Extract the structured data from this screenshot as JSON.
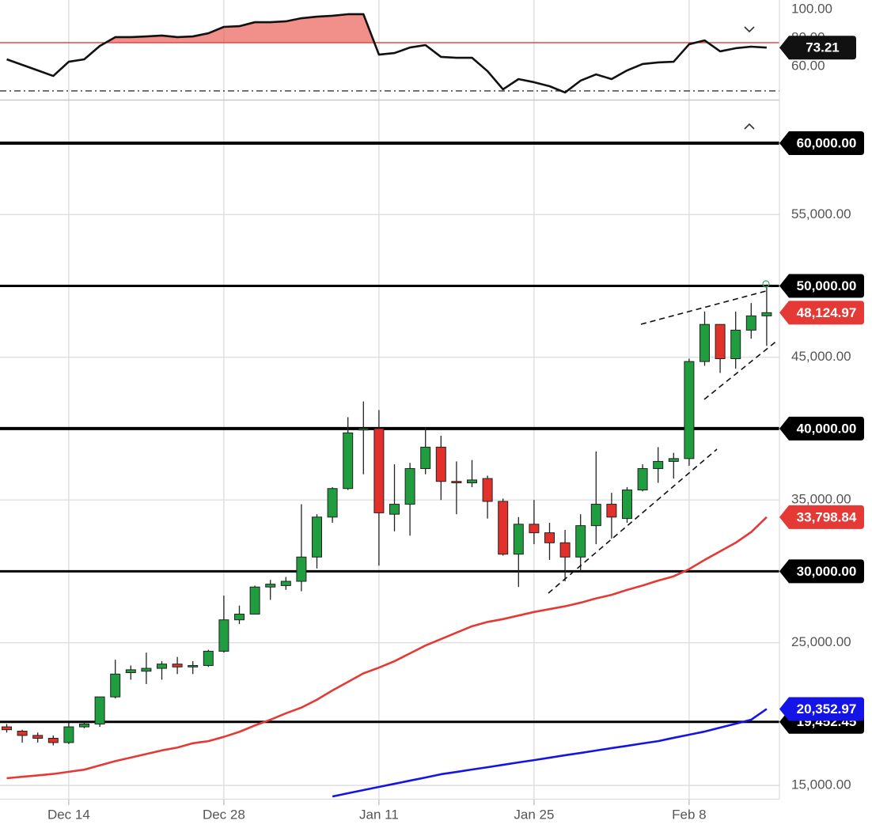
{
  "chart_data": [
    {
      "type": "line",
      "ylim": [
        37.2,
        106.7
      ],
      "yticks": [
        {
          "value": 100,
          "label": "100.00"
        },
        {
          "value": 80,
          "label": "80.00"
        },
        {
          "value": 60,
          "label": "60.00"
        }
      ],
      "series": [
        {
          "color": "#111111",
          "values": [
            65.0,
            61.1,
            57.2,
            53.3,
            63.3,
            65.0,
            74.4,
            80.6,
            80.6,
            81.1,
            81.7,
            80.6,
            81.1,
            83.3,
            87.8,
            88.3,
            91.1,
            91.1,
            91.7,
            93.9,
            95.0,
            95.6,
            96.7,
            96.7,
            68.3,
            69.4,
            73.3,
            75.0,
            66.7,
            66.1,
            66.1,
            56.7,
            43.9,
            51.1,
            48.9,
            46.1,
            41.7,
            50.0,
            54.4,
            51.1,
            57.2,
            61.7,
            62.8,
            63.3,
            75.6,
            78.3,
            70.6,
            72.8,
            73.9,
            73.21
          ]
        }
      ],
      "levels": [
        {
          "value": 76.7,
          "color": "#e53935",
          "fill": true
        },
        {
          "value": 42.8,
          "color": "#333333",
          "style": "dashdot"
        }
      ]
    },
    {
      "type": "candlestick",
      "categories": [
        null,
        null,
        null,
        null,
        "Dec 14",
        null,
        null,
        null,
        null,
        null,
        null,
        null,
        null,
        null,
        "Dec 28",
        null,
        null,
        null,
        null,
        null,
        null,
        null,
        null,
        null,
        "Jan 11",
        null,
        null,
        null,
        null,
        null,
        null,
        null,
        null,
        null,
        "Jan 25",
        null,
        null,
        null,
        null,
        null,
        null,
        null,
        null,
        null,
        "Feb 8",
        null,
        null,
        null,
        null,
        null
      ],
      "open": [
        19100,
        18800,
        18500,
        18300,
        18000,
        19100,
        19300,
        21200,
        22900,
        23000,
        23200,
        23500,
        23300,
        23400,
        24400,
        26600,
        27000,
        28900,
        29000,
        29300,
        31000,
        33800,
        35800,
        39900,
        40000,
        34000,
        34700,
        37200,
        38700,
        36300,
        36200,
        36500,
        34900,
        31200,
        33300,
        32700,
        32000,
        31000,
        33200,
        34700,
        33700,
        35700,
        37200,
        37700,
        37900,
        44700,
        47300,
        44900,
        46900,
        47900
      ],
      "high": [
        19300,
        18900,
        18700,
        18500,
        19400,
        19400,
        21200,
        23800,
        23400,
        24300,
        23700,
        24000,
        23700,
        24500,
        28300,
        27600,
        29000,
        29400,
        29600,
        34700,
        34000,
        35900,
        40800,
        41900,
        41300,
        37500,
        37600,
        40100,
        39500,
        37700,
        37800,
        36700,
        35100,
        33800,
        35000,
        33400,
        32900,
        34000,
        38400,
        35500,
        35900,
        37500,
        38700,
        38300,
        44900,
        48200,
        47300,
        48200,
        48800,
        50100
      ],
      "low": [
        18700,
        18000,
        18000,
        17800,
        17900,
        19000,
        19100,
        21100,
        22400,
        22100,
        22400,
        22800,
        22800,
        23300,
        24300,
        26300,
        27000,
        28000,
        28700,
        28600,
        30200,
        33400,
        35700,
        36800,
        30400,
        32800,
        32500,
        36800,
        35000,
        34000,
        35900,
        33700,
        31100,
        28900,
        31900,
        30800,
        29300,
        30000,
        31900,
        32300,
        33400,
        35600,
        36200,
        36500,
        37400,
        44400,
        43900,
        44200,
        46300,
        45800
      ],
      "close": [
        18900,
        18500,
        18300,
        18000,
        19100,
        19300,
        21200,
        22800,
        23100,
        23200,
        23500,
        23300,
        23400,
        24400,
        26600,
        27000,
        28900,
        29100,
        29300,
        31000,
        33800,
        35800,
        39700,
        40000,
        34100,
        34700,
        37200,
        38700,
        36300,
        36200,
        36400,
        34900,
        31200,
        33300,
        32700,
        32000,
        31000,
        33200,
        34700,
        33800,
        35700,
        37200,
        37700,
        37900,
        44700,
        47300,
        44900,
        46900,
        47900,
        48124.97
      ],
      "up_color": "#1f9d3f",
      "down_color": "#e2312a",
      "ylim": [
        14060,
        62940
      ],
      "yticks": [
        {
          "value": 15000,
          "label": "15,000.00"
        },
        {
          "value": 25000,
          "label": "25,000.00"
        },
        {
          "value": 35000,
          "label": "35,000.00"
        },
        {
          "value": 45000,
          "label": "45,000.00"
        },
        {
          "value": 55000,
          "label": "55,000.00"
        }
      ],
      "grid": true,
      "series": [
        {
          "color": "#e53935",
          "values": [
            15500,
            15600,
            15700,
            15800,
            15950,
            16100,
            16400,
            16700,
            16950,
            17200,
            17450,
            17650,
            17950,
            18100,
            18400,
            18750,
            19200,
            19600,
            20050,
            20450,
            21000,
            21650,
            22250,
            22850,
            23250,
            23700,
            24250,
            24800,
            25250,
            25700,
            26150,
            26450,
            26650,
            26900,
            27150,
            27350,
            27550,
            27800,
            28100,
            28350,
            28700,
            29000,
            29350,
            29650,
            30150,
            30800,
            31400,
            32000,
            32750,
            33798.84
          ]
        },
        {
          "color": "#1414e6",
          "values": [
            null,
            null,
            null,
            null,
            null,
            null,
            null,
            null,
            null,
            null,
            null,
            null,
            null,
            null,
            null,
            null,
            null,
            null,
            null,
            null,
            null,
            14220,
            14450,
            14670,
            14890,
            15110,
            15330,
            15550,
            15780,
            15940,
            16110,
            16270,
            16440,
            16610,
            16770,
            16940,
            17110,
            17270,
            17440,
            17610,
            17770,
            17940,
            18100,
            18330,
            18550,
            18770,
            19050,
            19320,
            19600,
            20352.97
          ]
        }
      ],
      "levels": [
        {
          "value": 60000,
          "label": "60,000.00",
          "width": 4
        },
        {
          "value": 50000,
          "label": "50,000.00",
          "width": 3
        },
        {
          "value": 40000,
          "label": "40,000.00",
          "width": 4
        },
        {
          "value": 30000,
          "label": "30,000.00",
          "width": 3
        },
        {
          "value": 19452.45,
          "label": "19,452.45",
          "width": 3
        }
      ],
      "price_tags": [
        {
          "value": 48124.97,
          "label": "48,124.97",
          "color": "#e53935"
        },
        {
          "value": 33798.84,
          "label": "33,798.84",
          "color": "#e53935"
        },
        {
          "value": 20352.97,
          "label": "20,352.97",
          "color": "#1414e6"
        }
      ]
    }
  ]
}
